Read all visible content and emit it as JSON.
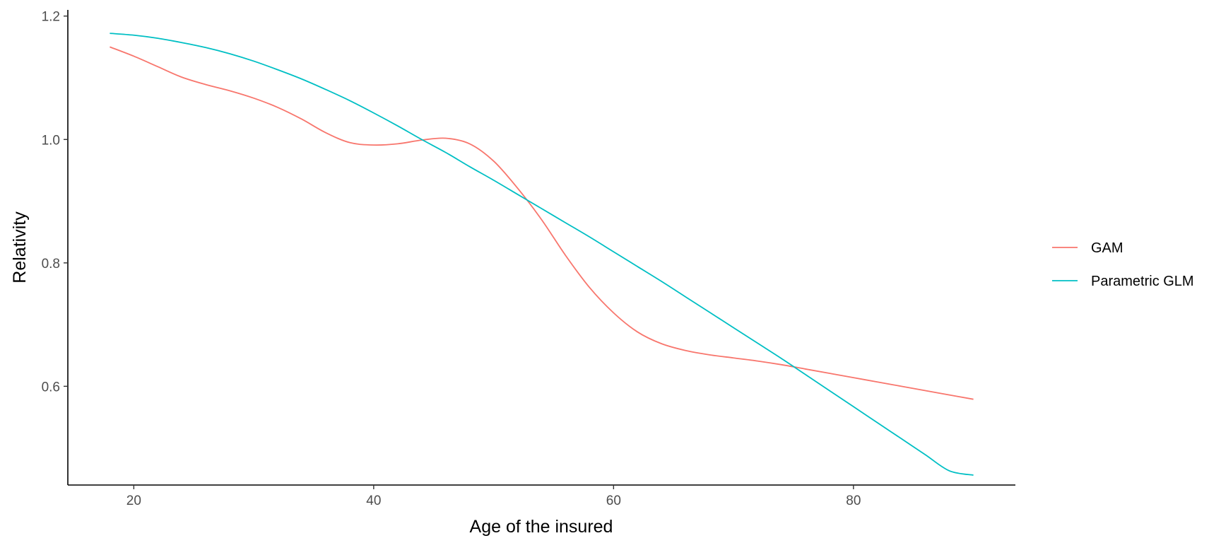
{
  "chart_data": {
    "type": "line",
    "title": "",
    "xlabel": "Age of the insured",
    "ylabel": "Relativity",
    "xlim": [
      14.5,
      93.5
    ],
    "ylim": [
      0.44,
      1.21
    ],
    "xticks": [
      20,
      40,
      60,
      80
    ],
    "xtick_labels": [
      "20",
      "40",
      "60",
      "80"
    ],
    "yticks": [
      0.6,
      0.8,
      1.0,
      1.2
    ],
    "ytick_labels": [
      "0.6",
      "0.8",
      "1.0",
      "1.2"
    ],
    "grid": false,
    "legend_position": "right",
    "series": [
      {
        "name": "GAM",
        "color": "#F8766D",
        "x": [
          18,
          20,
          22,
          24,
          26,
          28,
          30,
          32,
          34,
          36,
          38,
          40,
          42,
          44,
          46,
          48,
          50,
          52,
          54,
          56,
          58,
          60,
          62,
          64,
          66,
          68,
          70,
          72,
          74,
          76,
          78,
          80,
          82,
          84,
          86,
          88,
          90
        ],
        "y": [
          1.15,
          1.135,
          1.118,
          1.101,
          1.089,
          1.079,
          1.067,
          1.052,
          1.033,
          1.011,
          0.995,
          0.991,
          0.993,
          0.999,
          1.002,
          0.993,
          0.965,
          0.921,
          0.87,
          0.812,
          0.76,
          0.719,
          0.688,
          0.669,
          0.658,
          0.651,
          0.646,
          0.641,
          0.635,
          0.628,
          0.621,
          0.614,
          0.607,
          0.6,
          0.593,
          0.586,
          0.579
        ]
      },
      {
        "name": "Parametric GLM",
        "color": "#00BFC4",
        "x": [
          18,
          20,
          22,
          24,
          26,
          28,
          30,
          32,
          34,
          36,
          38,
          40,
          42,
          44,
          46,
          48,
          50,
          52,
          54,
          56,
          58,
          60,
          62,
          64,
          66,
          68,
          70,
          72,
          74,
          76,
          78,
          80,
          82,
          84,
          86,
          88,
          90
        ],
        "y": [
          1.172,
          1.169,
          1.164,
          1.157,
          1.149,
          1.139,
          1.127,
          1.113,
          1.098,
          1.081,
          1.063,
          1.043,
          1.022,
          1.0,
          0.979,
          0.956,
          0.934,
          0.911,
          0.888,
          0.865,
          0.842,
          0.818,
          0.794,
          0.77,
          0.745,
          0.72,
          0.695,
          0.67,
          0.645,
          0.619,
          0.593,
          0.567,
          0.541,
          0.515,
          0.489,
          0.463,
          0.456
        ]
      }
    ]
  }
}
